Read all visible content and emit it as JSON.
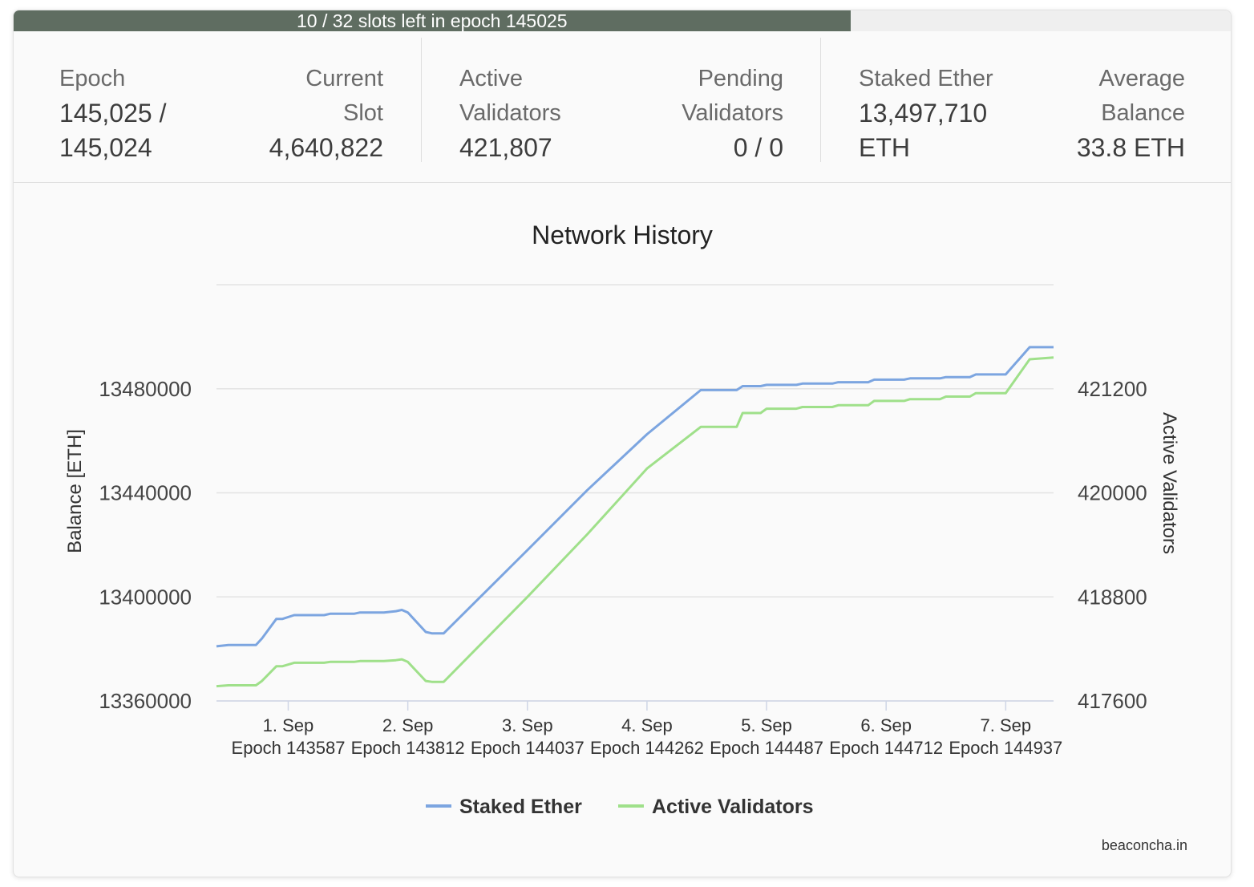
{
  "epoch_progress": {
    "text": "10 / 32 slots left in epoch 145025",
    "slots_left": 10,
    "slots_total": 32
  },
  "stats": {
    "epoch": {
      "label": "Epoch",
      "value_line1": "145,025 /",
      "value_line2": "145,024"
    },
    "current_slot": {
      "label_line1": "Current",
      "label_line2": "Slot",
      "value": "4,640,822"
    },
    "active_validators": {
      "label_line1": "Active",
      "label_line2": "Validators",
      "value": "421,807"
    },
    "pending_validators": {
      "label_line1": "Pending",
      "label_line2": "Validators",
      "value": "0 / 0"
    },
    "staked_ether": {
      "label": "Staked Ether",
      "value_line1": "13,497,710",
      "value_line2": "ETH"
    },
    "average_balance": {
      "label_line1": "Average",
      "label_line2": "Balance",
      "value": "33.8 ETH"
    }
  },
  "chart_data": {
    "type": "line",
    "title": "Network History",
    "credit": "beaconcha.in",
    "x_range": [
      -0.6,
      6.4
    ],
    "x_ticks": [
      {
        "x": 0,
        "line1": "1. Sep",
        "line2": "Epoch 143587"
      },
      {
        "x": 1,
        "line1": "2. Sep",
        "line2": "Epoch 143812"
      },
      {
        "x": 2,
        "line1": "3. Sep",
        "line2": "Epoch 144037"
      },
      {
        "x": 3,
        "line1": "4. Sep",
        "line2": "Epoch 144262"
      },
      {
        "x": 4,
        "line1": "5. Sep",
        "line2": "Epoch 144487"
      },
      {
        "x": 5,
        "line1": "6. Sep",
        "line2": "Epoch 144712"
      },
      {
        "x": 6,
        "line1": "7. Sep",
        "line2": "Epoch 144937"
      }
    ],
    "y_left": {
      "label": "Balance [ETH]",
      "range": [
        13360000,
        13520000
      ],
      "ticks": [
        13360000,
        13400000,
        13440000,
        13480000
      ]
    },
    "y_right": {
      "label": "Active Validators",
      "range": [
        417600,
        422400
      ],
      "ticks": [
        417600,
        418800,
        420000,
        421200
      ]
    },
    "series": [
      {
        "name": "Staked Ether",
        "axis": "left",
        "color": "#7ca5e0",
        "points": [
          [
            -0.6,
            13381000
          ],
          [
            -0.5,
            13381500
          ],
          [
            -0.27,
            13381500
          ],
          [
            -0.22,
            13384000
          ],
          [
            -0.1,
            13391500
          ],
          [
            -0.05,
            13391500
          ],
          [
            0.05,
            13393000
          ],
          [
            0.3,
            13393000
          ],
          [
            0.35,
            13393500
          ],
          [
            0.55,
            13393500
          ],
          [
            0.6,
            13394000
          ],
          [
            0.8,
            13394000
          ],
          [
            0.9,
            13394500
          ],
          [
            0.95,
            13395000
          ],
          [
            1.0,
            13394000
          ],
          [
            1.15,
            13386500
          ],
          [
            1.2,
            13386000
          ],
          [
            1.3,
            13386000
          ],
          [
            2.0,
            13418000
          ],
          [
            2.5,
            13441000
          ],
          [
            3.0,
            13462500
          ],
          [
            3.45,
            13479500
          ],
          [
            3.5,
            13479500
          ],
          [
            3.75,
            13479500
          ],
          [
            3.8,
            13481000
          ],
          [
            3.95,
            13481000
          ],
          [
            4.0,
            13481500
          ],
          [
            4.25,
            13481500
          ],
          [
            4.3,
            13482000
          ],
          [
            4.55,
            13482000
          ],
          [
            4.6,
            13482500
          ],
          [
            4.85,
            13482500
          ],
          [
            4.9,
            13483500
          ],
          [
            5.15,
            13483500
          ],
          [
            5.2,
            13484000
          ],
          [
            5.45,
            13484000
          ],
          [
            5.5,
            13484500
          ],
          [
            5.7,
            13484500
          ],
          [
            5.75,
            13485500
          ],
          [
            6.0,
            13485500
          ],
          [
            6.2,
            13496000
          ],
          [
            6.4,
            13496000
          ]
        ]
      },
      {
        "name": "Active Validators",
        "axis": "right",
        "color": "#9fe08a",
        "points": [
          [
            -0.6,
            417770
          ],
          [
            -0.5,
            417780
          ],
          [
            -0.27,
            417780
          ],
          [
            -0.22,
            417830
          ],
          [
            -0.1,
            418000
          ],
          [
            -0.05,
            418000
          ],
          [
            0.05,
            418040
          ],
          [
            0.3,
            418040
          ],
          [
            0.35,
            418050
          ],
          [
            0.55,
            418050
          ],
          [
            0.6,
            418060
          ],
          [
            0.8,
            418060
          ],
          [
            0.9,
            418070
          ],
          [
            0.95,
            418080
          ],
          [
            1.0,
            418050
          ],
          [
            1.15,
            417830
          ],
          [
            1.2,
            417820
          ],
          [
            1.3,
            417820
          ],
          [
            2.0,
            418800
          ],
          [
            2.5,
            419520
          ],
          [
            3.0,
            420280
          ],
          [
            3.45,
            420760
          ],
          [
            3.5,
            420760
          ],
          [
            3.75,
            420760
          ],
          [
            3.8,
            420920
          ],
          [
            3.95,
            420920
          ],
          [
            4.0,
            420970
          ],
          [
            4.25,
            420970
          ],
          [
            4.3,
            420990
          ],
          [
            4.55,
            420990
          ],
          [
            4.6,
            421010
          ],
          [
            4.85,
            421010
          ],
          [
            4.9,
            421060
          ],
          [
            5.15,
            421060
          ],
          [
            5.2,
            421080
          ],
          [
            5.45,
            421080
          ],
          [
            5.5,
            421110
          ],
          [
            5.7,
            421110
          ],
          [
            5.75,
            421150
          ],
          [
            6.0,
            421150
          ],
          [
            6.2,
            421540
          ],
          [
            6.4,
            421560
          ]
        ]
      }
    ]
  }
}
